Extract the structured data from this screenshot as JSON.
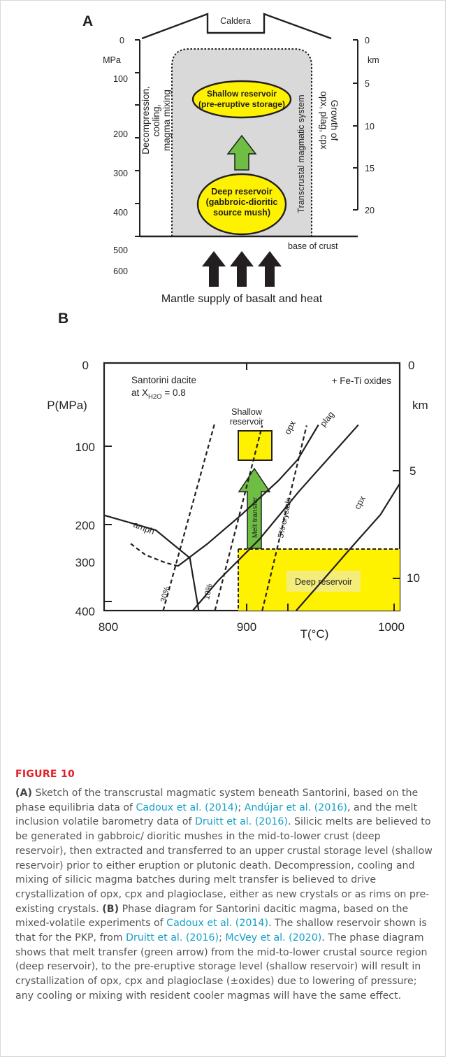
{
  "panelA": {
    "label": "A",
    "caldera": "Caldera",
    "mpa_unit": "MPa",
    "km_unit": "km",
    "mpa_ticks": [
      "0",
      "100",
      "200",
      "300",
      "400",
      "500",
      "600"
    ],
    "km_ticks": [
      "0",
      "5",
      "10",
      "15",
      "20"
    ],
    "left_text": [
      "Decompression,",
      "cooling,",
      "magma mixing"
    ],
    "right_text": [
      "Growth of",
      "opx, plag, cpx"
    ],
    "system_label": "Transcrustal magmatic system",
    "shallow": [
      "Shallow reservoir",
      "(pre-eruptive storage)"
    ],
    "deep": [
      "Deep reservoir",
      "(gabbroic-dioritic",
      "source mush)"
    ],
    "base": "base of crust",
    "mantle": "Mantle supply of basalt and heat",
    "colors": {
      "reservoir": "#fff200",
      "arrow": "#6fbe44",
      "system": "#d9d9d9"
    }
  },
  "panelB": {
    "label": "B",
    "title_l1": "Santorini dacite",
    "title_l2a": "at X",
    "title_l2sub": "H2O",
    "title_l2b": " = 0.8",
    "oxides": "+ Fe-Ti oxides",
    "ylabel": "P(MPa)",
    "km_unit": "km",
    "xlabel": "T(°C)",
    "y_ticks": [
      "0",
      "100",
      "200",
      "300",
      "400"
    ],
    "x_ticks": [
      "800",
      "900",
      "1000"
    ],
    "km_ticks": [
      "0",
      "5",
      "10"
    ],
    "shallow": [
      "Shallow",
      "reservoir"
    ],
    "deep": "Deep reservoir",
    "melt_transfer": "Melt transfer",
    "curves": {
      "amph": "amph",
      "opx": "opx",
      "plag": "plag",
      "cpx": "cpx"
    },
    "isopleths": {
      "p30": "30%",
      "p10": "10%",
      "p5": "5% crystals"
    }
  },
  "chart_data": {
    "type": "line",
    "title": "Santorini dacite at XH2O = 0.8",
    "xlabel": "T(°C)",
    "ylabel": "P(MPa)",
    "xlim": [
      800,
      1000
    ],
    "ylim": [
      400,
      0
    ],
    "series": [
      {
        "name": "amph",
        "x": [
          800,
          835,
          858,
          864
        ],
        "y": [
          246,
          270,
          315,
          400
        ]
      },
      {
        "name": "opx",
        "x": [
          850,
          870,
          893,
          918,
          931,
          945
        ],
        "y": [
          328,
          292,
          245,
          190,
          156,
          100
        ]
      },
      {
        "name": "plag",
        "x": [
          860,
          877,
          905,
          932,
          972
        ],
        "y": [
          400,
          352,
          285,
          207,
          100
        ]
      },
      {
        "name": "cpx",
        "x": [
          930,
          948,
          968,
          987,
          1000
        ],
        "y": [
          400,
          351,
          296,
          245,
          195
        ]
      },
      {
        "name": "30%",
        "x": [
          840,
          875
        ],
        "y": [
          400,
          96
        ]
      },
      {
        "name": "10%",
        "x": [
          875,
          907
        ],
        "y": [
          400,
          101
        ]
      },
      {
        "name": "5% crystals",
        "x": [
          907,
          937
        ],
        "y": [
          400,
          101
        ]
      }
    ],
    "regions": [
      {
        "name": "Shallow reservoir",
        "x": [
          895,
          917
        ],
        "y": [
          110,
          158
        ]
      },
      {
        "name": "Deep reservoir",
        "x": [
          895,
          1000
        ],
        "y": [
          300,
          400
        ]
      }
    ]
  },
  "caption": {
    "fig": "FIGURE 10",
    "a_label": "(A)",
    "a_text1": " Sketch of the transcrustal magmatic system beneath Santorini, based on the phase equilibria data of ",
    "ref1": "Cadoux et al. (2014)",
    "sep1": "; ",
    "ref2": "Andújar et al. (2016)",
    "a_text2": ", and the melt inclusion volatile barometry data of ",
    "ref3": "Druitt et al. (2016)",
    "a_text3": ". Silicic melts are believed to be generated in gabbroic/ dioritic mushes in the mid-to-lower crust (deep reservoir), then extracted and transferred to an upper crustal storage level (shallow reservoir) prior to either eruption or plutonic death. Decompression, cooling and mixing of silicic magma batches during melt transfer is believed to drive crystallization of opx, cpx and plagioclase, either as new crystals or as rims on pre-existing crystals. ",
    "b_label": "(B)",
    "b_text1": " Phase diagram for Santorini dacitic magma, based on the mixed-volatile experiments of ",
    "ref4": "Cadoux et al. (2014)",
    "b_text2": ". The shallow reservoir shown is that for the PKP, from ",
    "ref5": "Druitt et al. (2016)",
    "sep2": "; ",
    "ref6": "McVey et al. (2020)",
    "b_text3": ". The phase diagram shows that melt transfer (green arrow) from the mid-to-lower crustal source region (deep reservoir), to the pre-eruptive storage level (shallow reservoir) will result in crystallization of opx, cpx and plagioclase (±oxides) due to lowering of pressure; any cooling or mixing with resident cooler magmas will have the same effect."
  }
}
